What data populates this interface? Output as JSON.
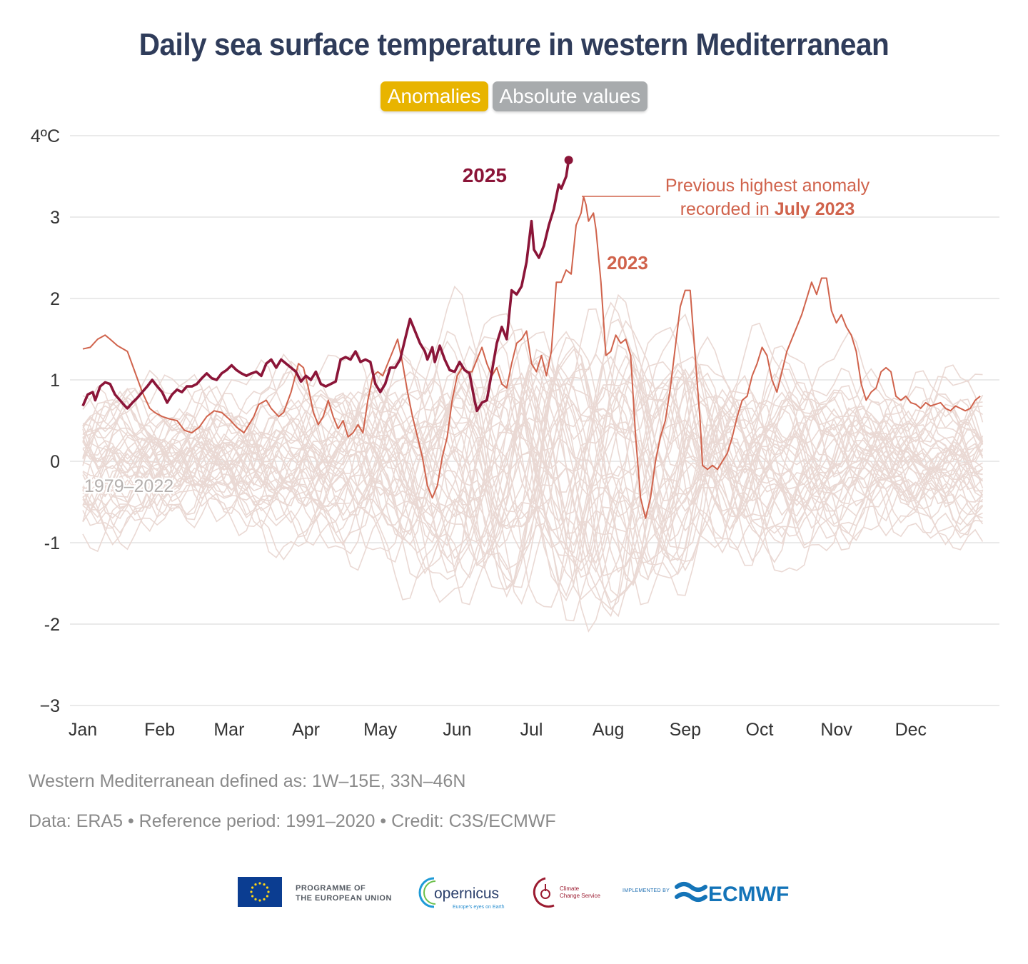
{
  "title": "Daily sea surface temperature in western Mediterranean",
  "toggles": {
    "anomalies": "Anomalies",
    "absolute": "Absolute values"
  },
  "colors": {
    "title": "#2f3c5a",
    "toggle_active": "#e8b400",
    "toggle_inactive": "#a8abad",
    "year_2025": "#8b1538",
    "year_2023": "#d0634c",
    "history": "#ead9d4",
    "grid": "#e3e3e3",
    "note": "#8a8a8a"
  },
  "chart_data": {
    "type": "line",
    "ylim": [
      -3,
      4
    ],
    "y_ticks": [
      {
        "value": 4,
        "label": "4ºC"
      },
      {
        "value": 3,
        "label": "3"
      },
      {
        "value": 2,
        "label": "2"
      },
      {
        "value": 1,
        "label": "1"
      },
      {
        "value": 0,
        "label": "0"
      },
      {
        "value": -1,
        "label": "-1"
      },
      {
        "value": -2,
        "label": "-2"
      },
      {
        "value": -3,
        "label": "−3"
      }
    ],
    "x_range_days": [
      1,
      365
    ],
    "x_ticks": [
      {
        "day": 1,
        "label": "Jan"
      },
      {
        "day": 32,
        "label": "Feb"
      },
      {
        "day": 60,
        "label": "Mar"
      },
      {
        "day": 91,
        "label": "Apr"
      },
      {
        "day": 121,
        "label": "May"
      },
      {
        "day": 152,
        "label": "Jun"
      },
      {
        "day": 182,
        "label": "Jul"
      },
      {
        "day": 213,
        "label": "Aug"
      },
      {
        "day": 244,
        "label": "Sep"
      },
      {
        "day": 274,
        "label": "Oct"
      },
      {
        "day": 305,
        "label": "Nov"
      },
      {
        "day": 335,
        "label": "Dec"
      }
    ],
    "grid": true,
    "history_label": "1979–2022",
    "history_count": 44,
    "series": [
      {
        "name": "2023",
        "color": "#d0634c",
        "points": [
          [
            1,
            1.38
          ],
          [
            4,
            1.4
          ],
          [
            7,
            1.5
          ],
          [
            10,
            1.55
          ],
          [
            12,
            1.5
          ],
          [
            15,
            1.42
          ],
          [
            19,
            1.35
          ],
          [
            22,
            1.1
          ],
          [
            25,
            0.85
          ],
          [
            28,
            0.65
          ],
          [
            30,
            0.6
          ],
          [
            33,
            0.55
          ],
          [
            36,
            0.52
          ],
          [
            39,
            0.5
          ],
          [
            42,
            0.38
          ],
          [
            45,
            0.35
          ],
          [
            48,
            0.42
          ],
          [
            51,
            0.55
          ],
          [
            54,
            0.62
          ],
          [
            57,
            0.6
          ],
          [
            60,
            0.52
          ],
          [
            63,
            0.42
          ],
          [
            66,
            0.35
          ],
          [
            68,
            0.45
          ],
          [
            70,
            0.55
          ],
          [
            72,
            0.7
          ],
          [
            75,
            0.75
          ],
          [
            77,
            0.65
          ],
          [
            80,
            0.55
          ],
          [
            82,
            0.6
          ],
          [
            85,
            0.85
          ],
          [
            88,
            1.2
          ],
          [
            90,
            1.15
          ],
          [
            92,
            0.9
          ],
          [
            94,
            0.6
          ],
          [
            96,
            0.45
          ],
          [
            98,
            0.55
          ],
          [
            100,
            0.75
          ],
          [
            102,
            0.55
          ],
          [
            104,
            0.4
          ],
          [
            106,
            0.5
          ],
          [
            108,
            0.3
          ],
          [
            110,
            0.35
          ],
          [
            112,
            0.45
          ],
          [
            114,
            0.35
          ],
          [
            116,
            0.75
          ],
          [
            118,
            1.05
          ],
          [
            120,
            1.1
          ],
          [
            122,
            1.05
          ],
          [
            124,
            1.2
          ],
          [
            126,
            1.35
          ],
          [
            128,
            1.5
          ],
          [
            130,
            1.2
          ],
          [
            132,
            0.85
          ],
          [
            134,
            0.55
          ],
          [
            136,
            0.3
          ],
          [
            138,
            0.05
          ],
          [
            140,
            -0.3
          ],
          [
            142,
            -0.45
          ],
          [
            144,
            -0.3
          ],
          [
            146,
            0.05
          ],
          [
            148,
            0.3
          ],
          [
            150,
            0.75
          ],
          [
            152,
            1.05
          ],
          [
            154,
            1.15
          ],
          [
            156,
            1.1
          ],
          [
            158,
            1.1
          ],
          [
            160,
            1.25
          ],
          [
            162,
            1.4
          ],
          [
            164,
            1.2
          ],
          [
            166,
            1.05
          ],
          [
            168,
            1.15
          ],
          [
            170,
            0.95
          ],
          [
            172,
            0.9
          ],
          [
            174,
            1.2
          ],
          [
            176,
            1.45
          ],
          [
            178,
            1.5
          ],
          [
            180,
            1.6
          ],
          [
            182,
            1.2
          ],
          [
            184,
            1.1
          ],
          [
            186,
            1.3
          ],
          [
            188,
            1.05
          ],
          [
            190,
            1.35
          ],
          [
            192,
            2.2
          ],
          [
            194,
            2.2
          ],
          [
            196,
            2.35
          ],
          [
            198,
            2.3
          ],
          [
            200,
            2.9
          ],
          [
            202,
            3.05
          ],
          [
            203,
            3.25
          ],
          [
            204,
            3.15
          ],
          [
            205,
            2.95
          ],
          [
            207,
            3.05
          ],
          [
            208,
            2.85
          ],
          [
            210,
            2.2
          ],
          [
            212,
            1.3
          ],
          [
            214,
            1.35
          ],
          [
            216,
            1.55
          ],
          [
            218,
            1.45
          ],
          [
            220,
            1.5
          ],
          [
            222,
            1.3
          ],
          [
            224,
            0.3
          ],
          [
            226,
            -0.45
          ],
          [
            228,
            -0.7
          ],
          [
            230,
            -0.45
          ],
          [
            232,
            0.0
          ],
          [
            234,
            0.3
          ],
          [
            236,
            0.5
          ],
          [
            238,
            0.9
          ],
          [
            240,
            1.4
          ],
          [
            242,
            1.9
          ],
          [
            244,
            2.1
          ],
          [
            246,
            2.1
          ],
          [
            248,
            1.3
          ],
          [
            250,
            0.5
          ],
          [
            251,
            -0.05
          ],
          [
            253,
            -0.1
          ],
          [
            255,
            -0.05
          ],
          [
            257,
            -0.1
          ],
          [
            259,
            0.0
          ],
          [
            261,
            0.1
          ],
          [
            263,
            0.3
          ],
          [
            265,
            0.55
          ],
          [
            267,
            0.75
          ],
          [
            269,
            0.8
          ],
          [
            271,
            1.05
          ],
          [
            273,
            1.2
          ],
          [
            275,
            1.4
          ],
          [
            277,
            1.3
          ],
          [
            279,
            1.0
          ],
          [
            281,
            0.85
          ],
          [
            283,
            1.1
          ],
          [
            285,
            1.35
          ],
          [
            287,
            1.5
          ],
          [
            289,
            1.65
          ],
          [
            291,
            1.8
          ],
          [
            293,
            2.0
          ],
          [
            295,
            2.2
          ],
          [
            297,
            2.05
          ],
          [
            299,
            2.25
          ],
          [
            301,
            2.25
          ],
          [
            303,
            1.85
          ],
          [
            305,
            1.7
          ],
          [
            307,
            1.8
          ],
          [
            309,
            1.65
          ],
          [
            311,
            1.55
          ],
          [
            313,
            1.35
          ],
          [
            315,
            0.95
          ],
          [
            317,
            0.75
          ],
          [
            319,
            0.85
          ],
          [
            321,
            0.9
          ],
          [
            323,
            1.1
          ],
          [
            325,
            1.15
          ],
          [
            327,
            1.1
          ],
          [
            329,
            0.8
          ],
          [
            331,
            0.75
          ],
          [
            333,
            0.8
          ],
          [
            335,
            0.72
          ],
          [
            337,
            0.7
          ],
          [
            339,
            0.65
          ],
          [
            341,
            0.72
          ],
          [
            343,
            0.68
          ],
          [
            345,
            0.7
          ],
          [
            347,
            0.72
          ],
          [
            349,
            0.65
          ],
          [
            351,
            0.62
          ],
          [
            353,
            0.68
          ],
          [
            355,
            0.65
          ],
          [
            357,
            0.62
          ],
          [
            359,
            0.65
          ],
          [
            361,
            0.75
          ],
          [
            363,
            0.8
          ]
        ]
      },
      {
        "name": "2025",
        "color": "#8b1538",
        "points": [
          [
            1,
            0.68
          ],
          [
            3,
            0.82
          ],
          [
            5,
            0.85
          ],
          [
            6,
            0.75
          ],
          [
            8,
            0.92
          ],
          [
            10,
            0.97
          ],
          [
            12,
            0.95
          ],
          [
            14,
            0.82
          ],
          [
            16,
            0.75
          ],
          [
            18,
            0.68
          ],
          [
            19,
            0.65
          ],
          [
            21,
            0.72
          ],
          [
            23,
            0.78
          ],
          [
            25,
            0.85
          ],
          [
            27,
            0.92
          ],
          [
            29,
            1.0
          ],
          [
            31,
            0.92
          ],
          [
            33,
            0.85
          ],
          [
            35,
            0.72
          ],
          [
            37,
            0.82
          ],
          [
            39,
            0.88
          ],
          [
            41,
            0.85
          ],
          [
            43,
            0.92
          ],
          [
            45,
            0.92
          ],
          [
            47,
            0.95
          ],
          [
            49,
            1.02
          ],
          [
            51,
            1.08
          ],
          [
            53,
            1.02
          ],
          [
            55,
            1.0
          ],
          [
            57,
            1.08
          ],
          [
            59,
            1.12
          ],
          [
            61,
            1.18
          ],
          [
            63,
            1.12
          ],
          [
            65,
            1.08
          ],
          [
            67,
            1.05
          ],
          [
            69,
            1.08
          ],
          [
            71,
            1.1
          ],
          [
            73,
            1.05
          ],
          [
            75,
            1.2
          ],
          [
            77,
            1.25
          ],
          [
            79,
            1.15
          ],
          [
            81,
            1.25
          ],
          [
            83,
            1.2
          ],
          [
            85,
            1.15
          ],
          [
            87,
            1.1
          ],
          [
            89,
            0.98
          ],
          [
            91,
            1.05
          ],
          [
            93,
            1.0
          ],
          [
            95,
            1.1
          ],
          [
            97,
            0.95
          ],
          [
            99,
            0.92
          ],
          [
            101,
            0.95
          ],
          [
            103,
            0.98
          ],
          [
            105,
            1.25
          ],
          [
            107,
            1.28
          ],
          [
            109,
            1.25
          ],
          [
            111,
            1.35
          ],
          [
            113,
            1.22
          ],
          [
            115,
            1.25
          ],
          [
            117,
            1.22
          ],
          [
            119,
            0.95
          ],
          [
            121,
            0.85
          ],
          [
            123,
            0.95
          ],
          [
            125,
            1.15
          ],
          [
            127,
            1.15
          ],
          [
            129,
            1.25
          ],
          [
            131,
            1.5
          ],
          [
            133,
            1.75
          ],
          [
            135,
            1.6
          ],
          [
            137,
            1.45
          ],
          [
            139,
            1.35
          ],
          [
            140,
            1.25
          ],
          [
            142,
            1.4
          ],
          [
            143,
            1.22
          ],
          [
            145,
            1.42
          ],
          [
            147,
            1.25
          ],
          [
            149,
            1.12
          ],
          [
            151,
            1.1
          ],
          [
            153,
            1.22
          ],
          [
            155,
            1.12
          ],
          [
            157,
            1.08
          ],
          [
            159,
            0.75
          ],
          [
            160,
            0.62
          ],
          [
            162,
            0.72
          ],
          [
            164,
            0.75
          ],
          [
            166,
            1.1
          ],
          [
            168,
            1.45
          ],
          [
            170,
            1.65
          ],
          [
            172,
            1.5
          ],
          [
            174,
            2.1
          ],
          [
            176,
            2.05
          ],
          [
            178,
            2.15
          ],
          [
            180,
            2.45
          ],
          [
            182,
            2.95
          ],
          [
            183,
            2.6
          ],
          [
            185,
            2.5
          ],
          [
            187,
            2.65
          ],
          [
            189,
            2.9
          ],
          [
            191,
            3.1
          ],
          [
            193,
            3.4
          ],
          [
            194,
            3.35
          ],
          [
            196,
            3.5
          ],
          [
            197,
            3.7
          ]
        ]
      }
    ],
    "annotations": {
      "label_2025": "2025",
      "label_2023": "2023",
      "record_line1": "Previous highest anomaly",
      "record_line2_prefix": "recorded in",
      "record_line2_bold": "July 2023"
    }
  },
  "notes": {
    "region": "Western Mediterranean defined as: 1W–15E, 33N–46N",
    "source": "Data: ERA5 • Reference period: 1991–2020 • Credit: C3S/ECMWF"
  },
  "logos": {
    "eu_line1": "PROGRAMME OF",
    "eu_line2": "THE EUROPEAN UNION",
    "copernicus": "opernicus",
    "copernicus_tagline": "Europe's eyes on Earth",
    "c3s_line1": "Climate",
    "c3s_line2": "Change Service",
    "implemented_by": "IMPLEMENTED BY",
    "ecmwf": "ECMWF"
  }
}
